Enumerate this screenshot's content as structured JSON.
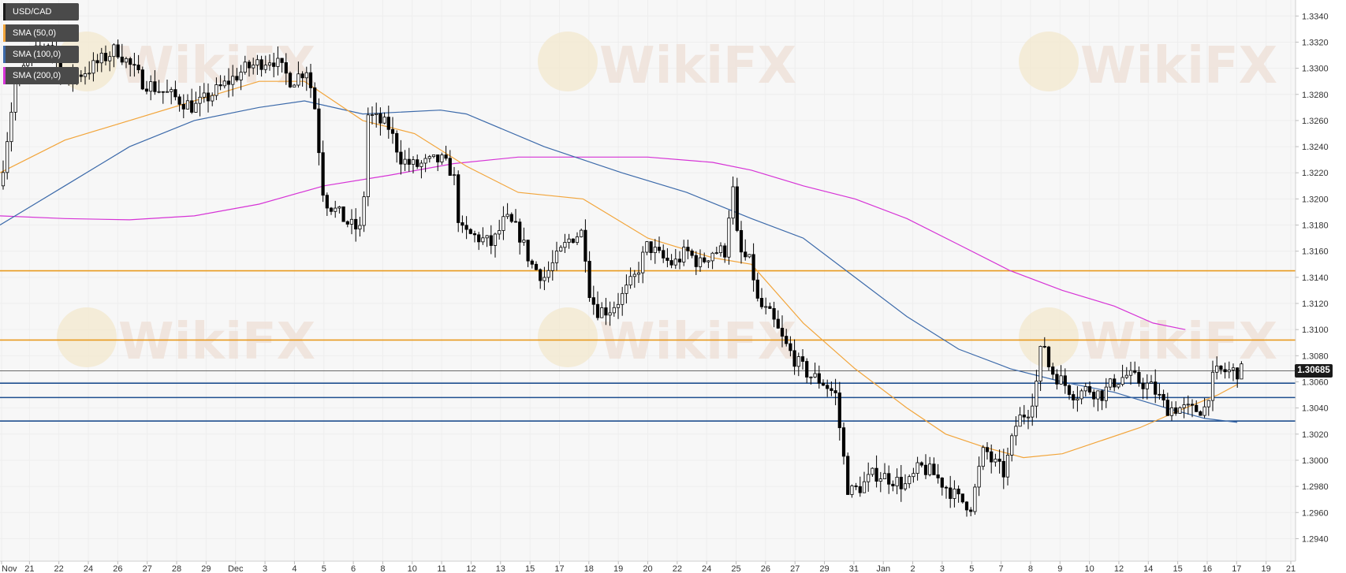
{
  "legend": [
    {
      "label": "USD/CAD",
      "color": "#1a1a1a"
    },
    {
      "label": "SMA (50,0)",
      "color": "#f2a53b"
    },
    {
      "label": "SMA (100,0)",
      "color": "#3c6aaa"
    },
    {
      "label": "SMA (200,0)",
      "color": "#d633d6"
    }
  ],
  "watermark_text": "WikiFX",
  "current_price_label": "1.30685",
  "colors": {
    "candle_up": "#ffffff",
    "candle_down": "#000000",
    "wick": "#000000",
    "sma50": "#f2a53b",
    "sma100": "#3c6aaa",
    "sma200": "#d633d6",
    "resistance": "#e89a1e",
    "support": "#1f4f8f",
    "grid": "#eeeeee",
    "background": "#f7f7f7",
    "axis_text": "#333333"
  },
  "chart_data": {
    "type": "candlestick",
    "symbol": "USD/CAD",
    "ylim": [
      1.293,
      1.3345
    ],
    "y_ticks": [
      1.294,
      1.296,
      1.298,
      1.3,
      1.302,
      1.304,
      1.306,
      1.308,
      1.31,
      1.312,
      1.314,
      1.316,
      1.318,
      1.32,
      1.322,
      1.324,
      1.326,
      1.328,
      1.33,
      1.332,
      1.334
    ],
    "x_labels": [
      "Nov",
      "21",
      "22",
      "24",
      "26",
      "27",
      "28",
      "29",
      "Dec",
      "3",
      "4",
      "5",
      "6",
      "8",
      "10",
      "11",
      "12",
      "13",
      "15",
      "17",
      "18",
      "19",
      "20",
      "22",
      "24",
      "25",
      "26",
      "27",
      "29",
      "31",
      "Jan",
      "2",
      "3",
      "5",
      "7",
      "8",
      "9",
      "10",
      "12",
      "14",
      "15",
      "16",
      "17",
      "19",
      "21"
    ],
    "resistance_levels": [
      1.3145,
      1.3092
    ],
    "support_levels": [
      1.3059,
      1.3048,
      1.303
    ],
    "current_price": 1.30685,
    "price_path": [
      [
        0,
        1.321
      ],
      [
        0.012,
        1.329
      ],
      [
        0.025,
        1.331
      ],
      [
        0.038,
        1.332
      ],
      [
        0.05,
        1.329
      ],
      [
        0.07,
        1.33
      ],
      [
        0.09,
        1.3315
      ],
      [
        0.11,
        1.329
      ],
      [
        0.13,
        1.328
      ],
      [
        0.15,
        1.327
      ],
      [
        0.17,
        1.3285
      ],
      [
        0.19,
        1.33
      ],
      [
        0.21,
        1.3308
      ],
      [
        0.225,
        1.329
      ],
      [
        0.237,
        1.33
      ],
      [
        0.243,
        1.327
      ],
      [
        0.25,
        1.32
      ],
      [
        0.27,
        1.318
      ],
      [
        0.28,
        1.3175
      ],
      [
        0.283,
        1.3265
      ],
      [
        0.3,
        1.3255
      ],
      [
        0.31,
        1.323
      ],
      [
        0.32,
        1.3225
      ],
      [
        0.34,
        1.323
      ],
      [
        0.35,
        1.322
      ],
      [
        0.355,
        1.3175
      ],
      [
        0.37,
        1.317
      ],
      [
        0.38,
        1.3165
      ],
      [
        0.39,
        1.3185
      ],
      [
        0.4,
        1.3175
      ],
      [
        0.41,
        1.315
      ],
      [
        0.42,
        1.314
      ],
      [
        0.43,
        1.3155
      ],
      [
        0.44,
        1.317
      ],
      [
        0.45,
        1.3175
      ],
      [
        0.455,
        1.313
      ],
      [
        0.46,
        1.3115
      ],
      [
        0.47,
        1.3115
      ],
      [
        0.48,
        1.3125
      ],
      [
        0.49,
        1.314
      ],
      [
        0.5,
        1.3165
      ],
      [
        0.51,
        1.3155
      ],
      [
        0.52,
        1.315
      ],
      [
        0.53,
        1.316
      ],
      [
        0.54,
        1.315
      ],
      [
        0.55,
        1.316
      ],
      [
        0.56,
        1.316
      ],
      [
        0.565,
        1.3215
      ],
      [
        0.57,
        1.316
      ],
      [
        0.58,
        1.315
      ],
      [
        0.585,
        1.312
      ],
      [
        0.595,
        1.311
      ],
      [
        0.605,
        1.309
      ],
      [
        0.615,
        1.3075
      ],
      [
        0.625,
        1.3065
      ],
      [
        0.635,
        1.306
      ],
      [
        0.645,
        1.305
      ],
      [
        0.65,
        1.301
      ],
      [
        0.655,
        1.2975
      ],
      [
        0.665,
        1.298
      ],
      [
        0.675,
        1.299
      ],
      [
        0.69,
        1.2985
      ],
      [
        0.7,
        1.298
      ],
      [
        0.71,
        1.2995
      ],
      [
        0.72,
        1.299
      ],
      [
        0.73,
        1.298
      ],
      [
        0.74,
        1.297
      ],
      [
        0.75,
        1.2965
      ],
      [
        0.755,
        1.299
      ],
      [
        0.76,
        1.301
      ],
      [
        0.765,
        1.3
      ],
      [
        0.775,
        1.299
      ],
      [
        0.785,
        1.303
      ],
      [
        0.795,
        1.304
      ],
      [
        0.8,
        1.306
      ],
      [
        0.805,
        1.3095
      ],
      [
        0.81,
        1.307
      ],
      [
        0.82,
        1.306
      ],
      [
        0.83,
        1.305
      ],
      [
        0.84,
        1.3055
      ],
      [
        0.85,
        1.305
      ],
      [
        0.86,
        1.306
      ],
      [
        0.87,
        1.3065
      ],
      [
        0.88,
        1.306
      ],
      [
        0.89,
        1.3055
      ],
      [
        0.9,
        1.304
      ],
      [
        0.91,
        1.304
      ],
      [
        0.92,
        1.3038
      ],
      [
        0.93,
        1.304
      ],
      [
        0.935,
        1.306
      ],
      [
        0.94,
        1.3068
      ],
      [
        0.96,
        1.3068
      ]
    ],
    "sma50_path": [
      [
        0,
        1.322
      ],
      [
        0.05,
        1.3245
      ],
      [
        0.1,
        1.326
      ],
      [
        0.15,
        1.3275
      ],
      [
        0.2,
        1.329
      ],
      [
        0.235,
        1.329
      ],
      [
        0.28,
        1.326
      ],
      [
        0.32,
        1.325
      ],
      [
        0.36,
        1.3225
      ],
      [
        0.4,
        1.3205
      ],
      [
        0.45,
        1.32
      ],
      [
        0.5,
        1.317
      ],
      [
        0.55,
        1.3155
      ],
      [
        0.58,
        1.315
      ],
      [
        0.62,
        1.3105
      ],
      [
        0.66,
        1.307
      ],
      [
        0.7,
        1.304
      ],
      [
        0.73,
        1.302
      ],
      [
        0.76,
        1.301
      ],
      [
        0.79,
        1.3002
      ],
      [
        0.82,
        1.3005
      ],
      [
        0.85,
        1.3015
      ],
      [
        0.88,
        1.3025
      ],
      [
        0.91,
        1.3038
      ],
      [
        0.94,
        1.305
      ],
      [
        0.955,
        1.3058
      ]
    ],
    "sma100_path": [
      [
        0,
        1.318
      ],
      [
        0.05,
        1.321
      ],
      [
        0.1,
        1.324
      ],
      [
        0.15,
        1.326
      ],
      [
        0.2,
        1.327
      ],
      [
        0.235,
        1.3275
      ],
      [
        0.28,
        1.3265
      ],
      [
        0.34,
        1.3268
      ],
      [
        0.36,
        1.3265
      ],
      [
        0.42,
        1.324
      ],
      [
        0.48,
        1.322
      ],
      [
        0.53,
        1.3205
      ],
      [
        0.58,
        1.3185
      ],
      [
        0.62,
        1.317
      ],
      [
        0.66,
        1.314
      ],
      [
        0.7,
        1.311
      ],
      [
        0.74,
        1.3085
      ],
      [
        0.78,
        1.307
      ],
      [
        0.82,
        1.306
      ],
      [
        0.86,
        1.3052
      ],
      [
        0.9,
        1.304
      ],
      [
        0.93,
        1.3032
      ],
      [
        0.955,
        1.3029
      ]
    ],
    "sma200_path": [
      [
        0,
        1.3187
      ],
      [
        0.05,
        1.3185
      ],
      [
        0.1,
        1.3184
      ],
      [
        0.15,
        1.3187
      ],
      [
        0.2,
        1.3196
      ],
      [
        0.25,
        1.321
      ],
      [
        0.3,
        1.3218
      ],
      [
        0.35,
        1.3227
      ],
      [
        0.4,
        1.3232
      ],
      [
        0.45,
        1.3232
      ],
      [
        0.5,
        1.3232
      ],
      [
        0.55,
        1.3228
      ],
      [
        0.58,
        1.3222
      ],
      [
        0.62,
        1.321
      ],
      [
        0.66,
        1.32
      ],
      [
        0.7,
        1.3185
      ],
      [
        0.74,
        1.3165
      ],
      [
        0.78,
        1.3145
      ],
      [
        0.82,
        1.313
      ],
      [
        0.86,
        1.3118
      ],
      [
        0.89,
        1.3105
      ],
      [
        0.915,
        1.31
      ]
    ]
  }
}
